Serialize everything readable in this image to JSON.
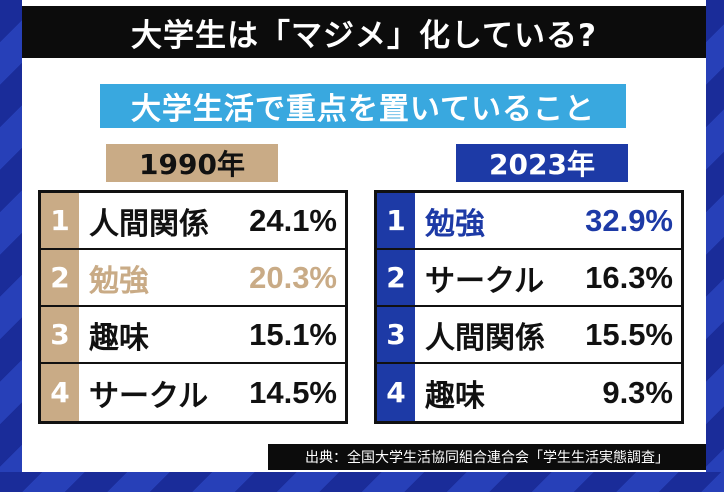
{
  "title": "大学生は「マジメ」化している?",
  "subtitle": "大学生活で重点を置いていること",
  "columns": [
    {
      "year": "1990年",
      "rows": [
        {
          "rank": "1",
          "label": "人間関係",
          "value": "24.1%"
        },
        {
          "rank": "2",
          "label": "勉強",
          "value": "20.3%"
        },
        {
          "rank": "3",
          "label": "趣味",
          "value": "15.1%"
        },
        {
          "rank": "4",
          "label": "サークル",
          "value": "14.5%"
        }
      ]
    },
    {
      "year": "2023年",
      "rows": [
        {
          "rank": "1",
          "label": "勉強",
          "value": "32.9%"
        },
        {
          "rank": "2",
          "label": "サークル",
          "value": "16.3%"
        },
        {
          "rank": "3",
          "label": "人間関係",
          "value": "15.5%"
        },
        {
          "rank": "4",
          "label": "趣味",
          "value": "9.3%"
        }
      ]
    }
  ],
  "source": "出典：全国大学生活協同組合連合会「学生生活実態調査」",
  "colors": {
    "gold": "#c9ab86",
    "blue": "#1d3aa6",
    "sky": "#39a8df",
    "black": "#0c0c0c"
  }
}
